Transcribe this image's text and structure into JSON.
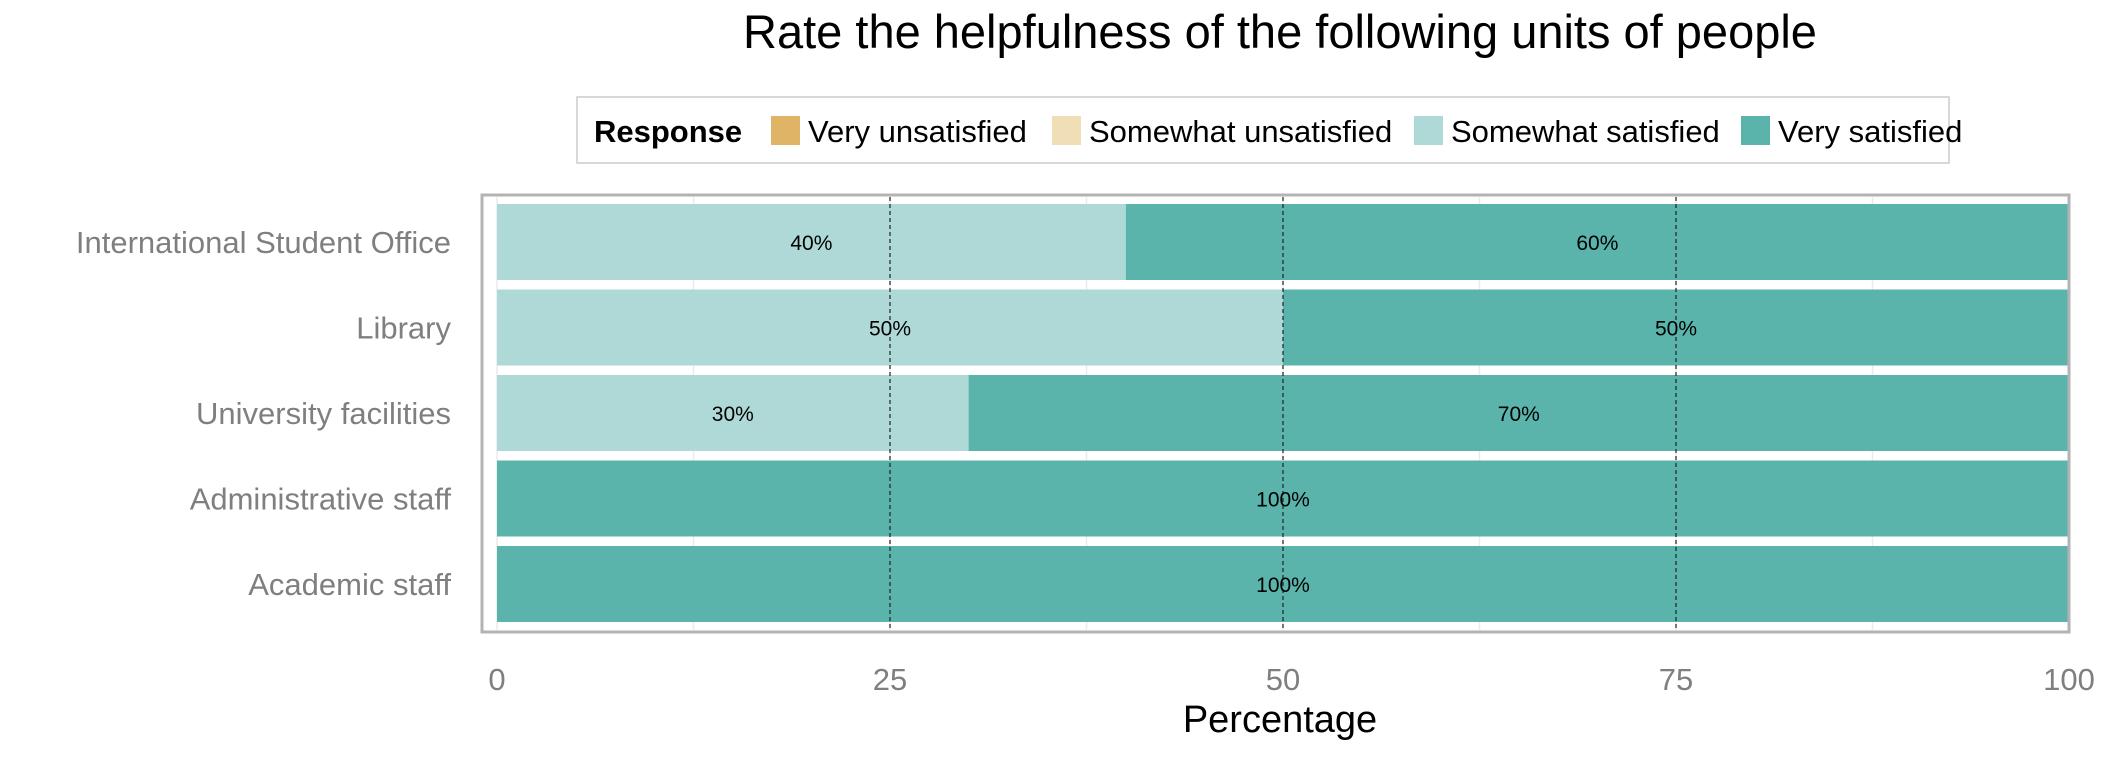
{
  "chart_data": {
    "type": "bar",
    "orientation": "horizontal",
    "stacked": true,
    "title": "Rate the helpfulness of the following units of people",
    "xlabel": "Percentage",
    "ylabel": "",
    "xlim": [
      0,
      100
    ],
    "x_ticks": [
      "0",
      "25",
      "50",
      "75",
      "100"
    ],
    "grid": true,
    "legend_position": "top",
    "legend_title": "Response",
    "categories": [
      "International Student Office",
      "Library",
      "University facilities",
      "Administrative staff",
      "Academic staff"
    ],
    "series": [
      {
        "name": "Very unsatisfied",
        "color": "#DFB467",
        "values": [
          0,
          0,
          0,
          0,
          0
        ]
      },
      {
        "name": "Somewhat unsatisfied",
        "color": "#F0DEB7",
        "values": [
          0,
          0,
          0,
          0,
          0
        ]
      },
      {
        "name": "Somewhat satisfied",
        "color": "#AED9D6",
        "values": [
          40,
          50,
          30,
          0,
          0
        ]
      },
      {
        "name": "Very satisfied",
        "color": "#5AB4AC",
        "values": [
          60,
          50,
          70,
          100,
          100
        ]
      }
    ],
    "data_labels": [
      [
        "",
        "",
        "40%",
        "60%"
      ],
      [
        "",
        "",
        "50%",
        "50%"
      ],
      [
        "",
        "",
        "30%",
        "70%"
      ],
      [
        "",
        "",
        "",
        "100%"
      ],
      [
        "",
        "",
        "",
        "100%"
      ]
    ]
  }
}
